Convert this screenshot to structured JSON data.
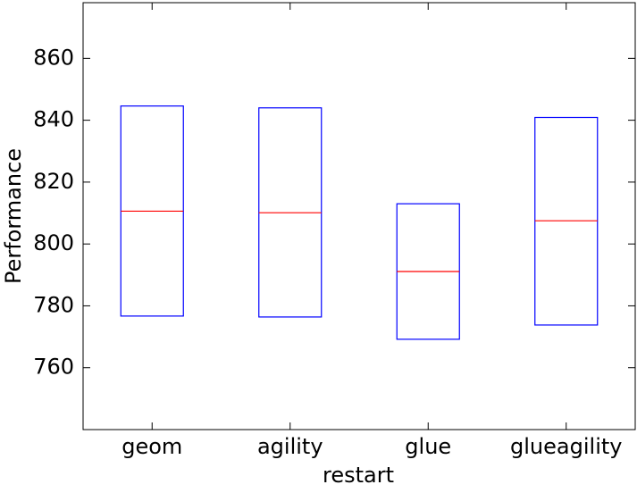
{
  "chart_data": {
    "type": "box",
    "x_label": "restart",
    "y_label": "Performance",
    "categories": [
      "geom",
      "agility",
      "glue",
      "glueagility"
    ],
    "q1": [
      776.7,
      776.4,
      769.2,
      773.8
    ],
    "median": [
      810.6,
      810.1,
      791.1,
      807.5
    ],
    "q3": [
      844.6,
      844.0,
      813.0,
      840.9
    ],
    "box_color": "#0000ff",
    "median_color": "#ff0000",
    "ylim": [
      740,
      878
    ],
    "yticks": [
      760,
      780,
      800,
      820,
      840,
      860
    ]
  }
}
